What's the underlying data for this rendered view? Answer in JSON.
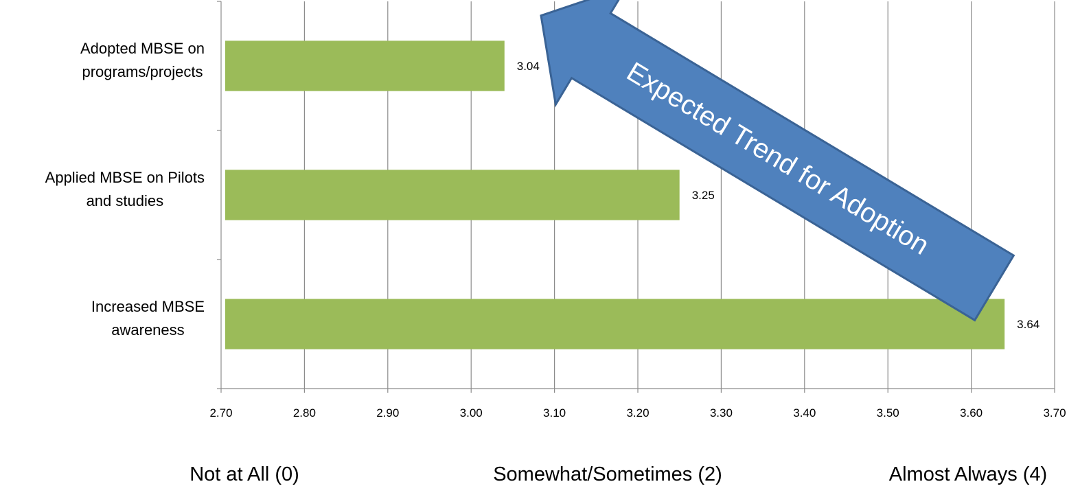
{
  "chart_data": {
    "type": "bar",
    "orientation": "horizontal",
    "categories": [
      [
        "Adopted MBSE on",
        "programs/projects"
      ],
      [
        "Applied MBSE on Pilots",
        "and studies"
      ],
      [
        "Increased MBSE",
        "awareness"
      ]
    ],
    "values": [
      3.04,
      3.25,
      3.64
    ],
    "data_labels": [
      "3.04",
      "3.25",
      "3.64"
    ],
    "xlim": [
      2.7,
      3.7
    ],
    "x_ticks": [
      "2.70",
      "2.80",
      "2.90",
      "3.00",
      "3.10",
      "3.20",
      "3.30",
      "3.40",
      "3.50",
      "3.60",
      "3.70"
    ],
    "grid": "vertical",
    "bar_color": "#9BBB59",
    "scale_labels": [
      "Not at All (0)",
      "Somewhat/Sometimes (2)",
      "Almost Always (4)"
    ],
    "annotation": {
      "text": "Expected  Trend for Adoption",
      "shape": "arrow",
      "direction": "up-left",
      "fill": "#4F81BD",
      "text_color": "#FFFFFF"
    }
  }
}
